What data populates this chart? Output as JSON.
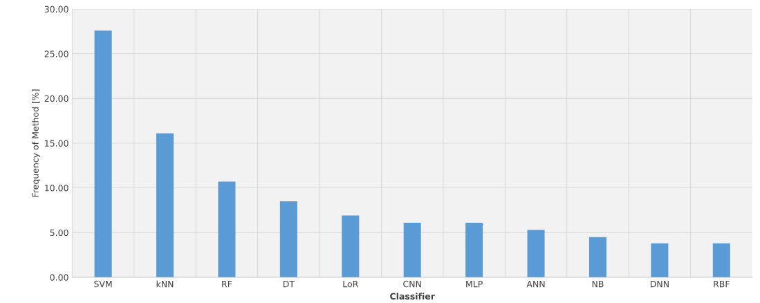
{
  "chart_data": {
    "type": "bar",
    "xlabel": "Classifier",
    "ylabel": "Frequency of Method [%]",
    "categories": [
      "SVM",
      "kNN",
      "RF",
      "DT",
      "LoR",
      "CNN",
      "MLP",
      "ANN",
      "NB",
      "DNN",
      "RBF"
    ],
    "values": [
      27.6,
      16.1,
      10.7,
      8.5,
      6.9,
      6.1,
      6.1,
      5.3,
      4.5,
      3.8,
      3.8
    ],
    "color": "#5b9bd5",
    "ylim": [
      0,
      30
    ],
    "yticks": [
      {
        "value": 0,
        "label": "0.00"
      },
      {
        "value": 5,
        "label": "5.00"
      },
      {
        "value": 10,
        "label": "10.00"
      },
      {
        "value": 15,
        "label": "15.00"
      },
      {
        "value": 20,
        "label": "20.00"
      },
      {
        "value": 25,
        "label": "25.00"
      },
      {
        "value": 30,
        "label": "30.00"
      }
    ],
    "grid": true
  }
}
